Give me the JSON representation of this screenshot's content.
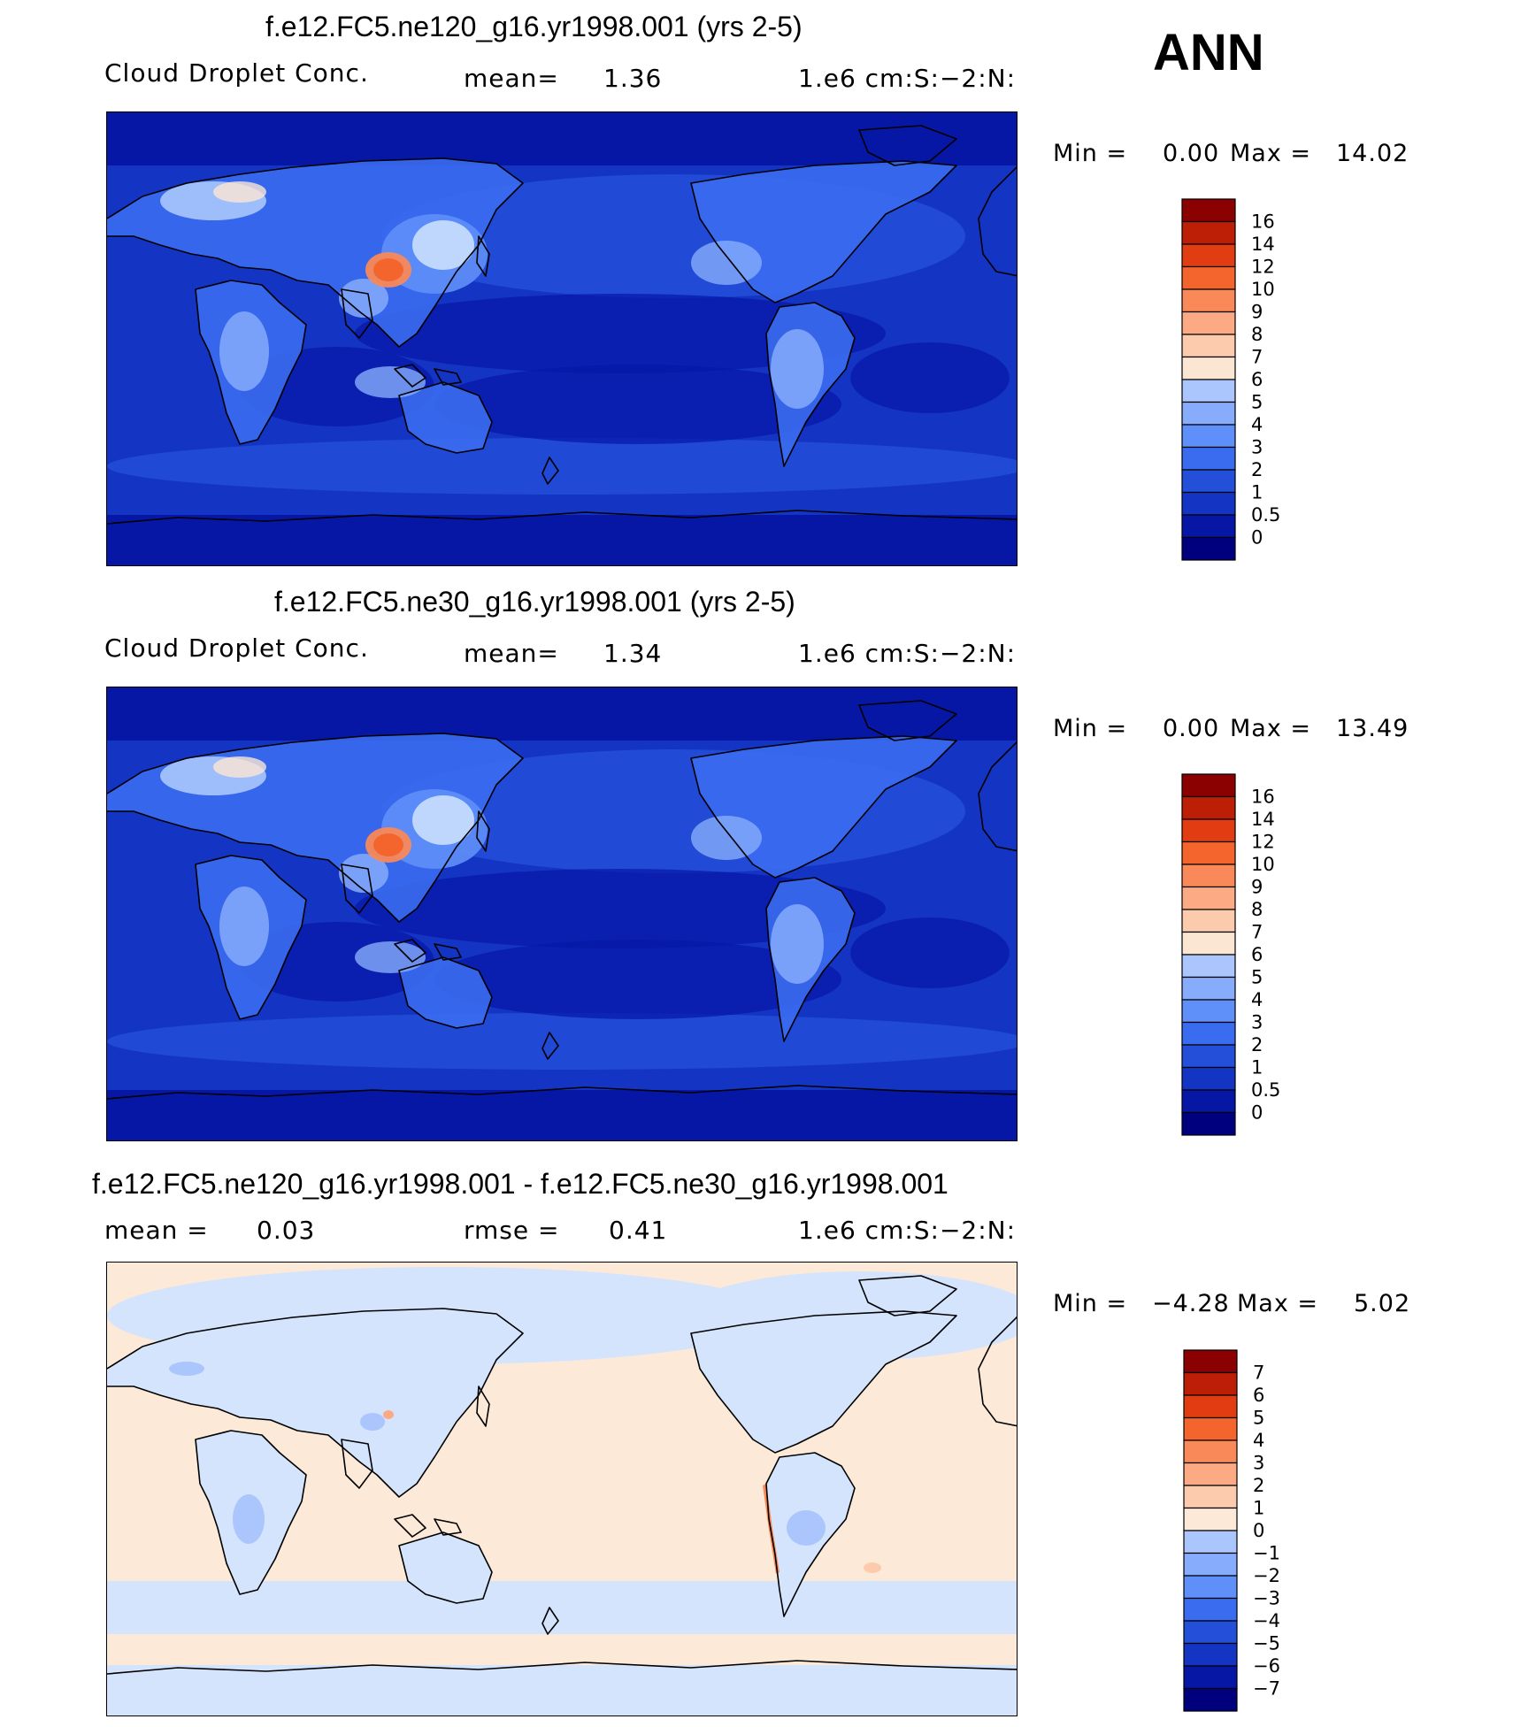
{
  "season_label": "ANN",
  "colors": {
    "seq_ramp": [
      "#00007f",
      "#0617a6",
      "#1434c4",
      "#234fd9",
      "#3a6cf0",
      "#5f8ff8",
      "#86acfb",
      "#aac6fd",
      "#cbdffd",
      "#fbe6d4",
      "#fccbae",
      "#fbaa84",
      "#f98958",
      "#f3652d",
      "#e23d12",
      "#bc1e06",
      "#8b0000"
    ],
    "diff_ramp": [
      "#00007f",
      "#0617a6",
      "#1434c4",
      "#234fd9",
      "#3a6cf0",
      "#5f8ff8",
      "#86acfb",
      "#aac6fd",
      "#d4e4fc",
      "#fde9d8",
      "#fccbae",
      "#fbaa84",
      "#f98958",
      "#f3652d",
      "#e23d12",
      "#bc1e06",
      "#8b0000"
    ],
    "continent_outline": "#000000"
  },
  "panels": [
    {
      "title": "f.e12.FC5.ne120_g16.yr1998.001 (yrs 2-5)",
      "sub_left": "Cloud Droplet Conc.",
      "sub_mid_label": "mean=",
      "sub_mid_value": "1.36",
      "sub_right": "1.e6 cm:S:−2:N:",
      "min_label": "Min =",
      "min_value": "0.00",
      "max_label": "Max =",
      "max_value": "14.02",
      "colorbar": {
        "ramp": "seq_ramp",
        "labels": [
          "16",
          "14",
          "12",
          "10",
          "9",
          "8",
          "7",
          "6",
          "5",
          "4",
          "3",
          "2",
          "1",
          "0.5",
          "0"
        ]
      },
      "hotspot_color": "#f3652d"
    },
    {
      "title": "f.e12.FC5.ne30_g16.yr1998.001 (yrs 2-5)",
      "sub_left": "Cloud Droplet Conc.",
      "sub_mid_label": "mean=",
      "sub_mid_value": "1.34",
      "sub_right": "1.e6 cm:S:−2:N:",
      "min_label": "Min =",
      "min_value": "0.00",
      "max_label": "Max =",
      "max_value": "13.49",
      "colorbar": {
        "ramp": "seq_ramp",
        "labels": [
          "16",
          "14",
          "12",
          "10",
          "9",
          "8",
          "7",
          "6",
          "5",
          "4",
          "3",
          "2",
          "1",
          "0.5",
          "0"
        ]
      },
      "hotspot_color": "#f3652d"
    },
    {
      "title": "f.e12.FC5.ne120_g16.yr1998.001 - f.e12.FC5.ne30_g16.yr1998.001",
      "sub_left_label": "mean =",
      "sub_left_value": "0.03",
      "sub_mid_label": "rmse =",
      "sub_mid_value": "0.41",
      "sub_right": "1.e6 cm:S:−2:N:",
      "min_label": "Min =",
      "min_value": "−4.28",
      "max_label": "Max =",
      "max_value": "5.02",
      "colorbar": {
        "ramp": "diff_ramp",
        "labels": [
          "7",
          "6",
          "5",
          "4",
          "3",
          "2",
          "1",
          "0",
          "−1",
          "−2",
          "−3",
          "−4",
          "−5",
          "−6",
          "−7"
        ]
      }
    }
  ]
}
